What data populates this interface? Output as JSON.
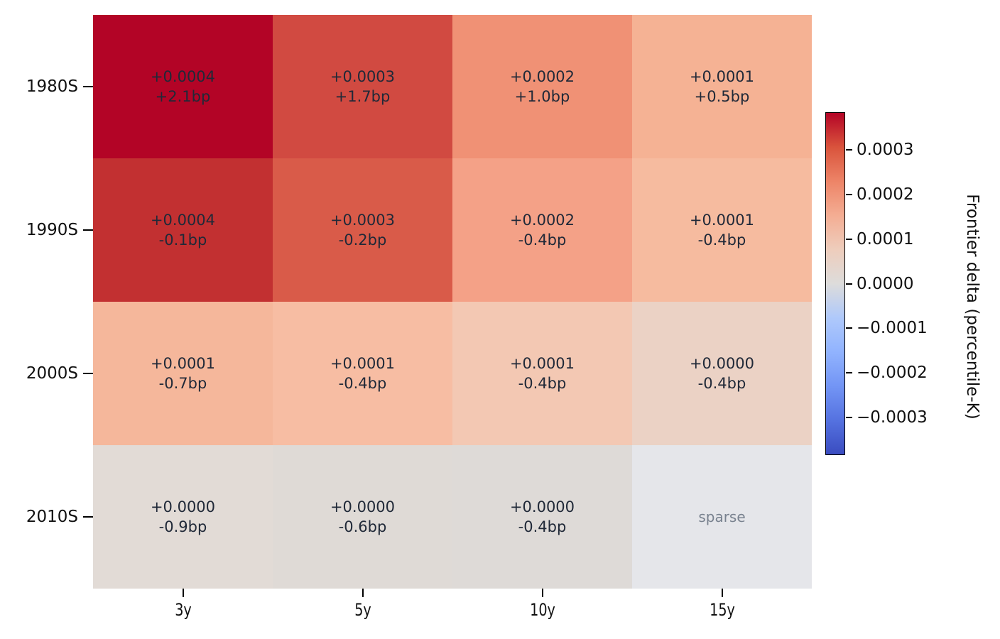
{
  "figure": {
    "background": "#ffffff",
    "annotation_text_color": "#202938",
    "sparse_text_color": "#79828f",
    "axis_tick_color": "#000000"
  },
  "chart_data": {
    "type": "heatmap",
    "x_categories": [
      "3y",
      "5y",
      "10y",
      "15y"
    ],
    "y_categories": [
      "1980S",
      "1990S",
      "2000S",
      "2010S"
    ],
    "series": [
      {
        "name": "1980S",
        "delta": [
          0.0004,
          0.0003,
          0.0002,
          0.0001
        ],
        "bp": [
          2.1,
          1.7,
          1.0,
          0.5
        ]
      },
      {
        "name": "1990S",
        "delta": [
          0.0004,
          0.0003,
          0.0002,
          0.0001
        ],
        "bp": [
          -0.1,
          -0.2,
          -0.4,
          -0.4
        ]
      },
      {
        "name": "2000S",
        "delta": [
          0.0001,
          0.0001,
          0.0001,
          0.0
        ],
        "bp": [
          -0.7,
          -0.4,
          -0.4,
          -0.4
        ]
      },
      {
        "name": "2010S",
        "delta": [
          0.0,
          0.0,
          0.0,
          null
        ],
        "bp": [
          -0.9,
          -0.6,
          -0.4,
          null
        ]
      }
    ],
    "cells": [
      {
        "row": "1980S",
        "col": "3y",
        "line1": "+0.0004",
        "line2": "+2.1bp",
        "color": "#b30426",
        "muted": false
      },
      {
        "row": "1980S",
        "col": "5y",
        "line1": "+0.0003",
        "line2": "+1.7bp",
        "color": "#d14a41",
        "muted": false
      },
      {
        "row": "1980S",
        "col": "10y",
        "line1": "+0.0002",
        "line2": "+1.0bp",
        "color": "#f09175",
        "muted": false
      },
      {
        "row": "1980S",
        "col": "15y",
        "line1": "+0.0001",
        "line2": "+0.5bp",
        "color": "#f5b294",
        "muted": false
      },
      {
        "row": "1990S",
        "col": "3y",
        "line1": "+0.0004",
        "line2": "-0.1bp",
        "color": "#c23031",
        "muted": false
      },
      {
        "row": "1990S",
        "col": "5y",
        "line1": "+0.0003",
        "line2": "-0.2bp",
        "color": "#d95b49",
        "muted": false
      },
      {
        "row": "1990S",
        "col": "10y",
        "line1": "+0.0002",
        "line2": "-0.4bp",
        "color": "#f4a187",
        "muted": false
      },
      {
        "row": "1990S",
        "col": "15y",
        "line1": "+0.0001",
        "line2": "-0.4bp",
        "color": "#f6bb9f",
        "muted": false
      },
      {
        "row": "2000S",
        "col": "3y",
        "line1": "+0.0001",
        "line2": "-0.7bp",
        "color": "#f5b79b",
        "muted": false
      },
      {
        "row": "2000S",
        "col": "5y",
        "line1": "+0.0001",
        "line2": "-0.4bp",
        "color": "#f7bda3",
        "muted": false
      },
      {
        "row": "2000S",
        "col": "10y",
        "line1": "+0.0001",
        "line2": "-0.4bp",
        "color": "#f3c8b3",
        "muted": false
      },
      {
        "row": "2000S",
        "col": "15y",
        "line1": "+0.0000",
        "line2": "-0.4bp",
        "color": "#ebd2c5",
        "muted": false
      },
      {
        "row": "2010S",
        "col": "3y",
        "line1": "+0.0000",
        "line2": "-0.9bp",
        "color": "#e2dbd6",
        "muted": false
      },
      {
        "row": "2010S",
        "col": "5y",
        "line1": "+0.0000",
        "line2": "-0.6bp",
        "color": "#dfdad6",
        "muted": false
      },
      {
        "row": "2010S",
        "col": "10y",
        "line1": "+0.0000",
        "line2": "-0.4bp",
        "color": "#dedad7",
        "muted": false
      },
      {
        "row": "2010S",
        "col": "15y",
        "line1": "sparse",
        "line2": "",
        "color": "#e5e6ea",
        "muted": true
      }
    ],
    "colorbar": {
      "label": "Frontier delta (percentile-K)",
      "tick_labels": [
        "0.0003",
        "0.0002",
        "0.0001",
        "0.0000",
        "−0.0001",
        "−0.0002",
        "−0.0003"
      ],
      "tick_values": [
        0.0003,
        0.0002,
        0.0001,
        0.0,
        -0.0001,
        -0.0002,
        -0.0003
      ],
      "vmin": -0.000385,
      "vmax": 0.000385,
      "colormap": "coolwarm",
      "gradient_top_to_bottom": [
        "#b40426",
        "#d9533c",
        "#ed8467",
        "#f4ad93",
        "#eecdbc",
        "#dddcdb",
        "#afc9fb",
        "#91b3fe",
        "#7395f5",
        "#5572e0",
        "#3a4cc0"
      ]
    },
    "grid_on": false,
    "legend_position": "colorbar-right"
  }
}
